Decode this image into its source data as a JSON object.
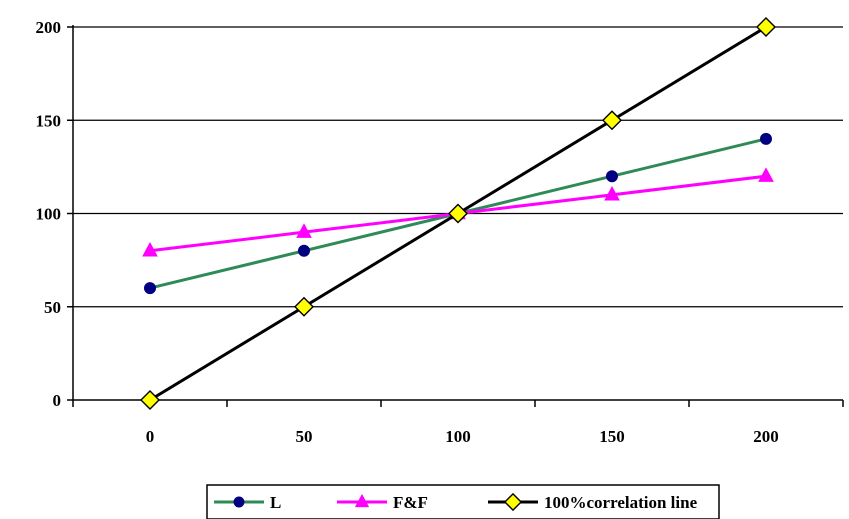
{
  "chart_data": {
    "type": "line",
    "title": "",
    "xlabel": "",
    "ylabel": "",
    "xlim": [
      -25,
      225
    ],
    "ylim": [
      0,
      200
    ],
    "x_ticks": [
      0,
      50,
      100,
      150,
      200
    ],
    "y_ticks": [
      0,
      50,
      100,
      150,
      200
    ],
    "grid": "horizontal",
    "legend_position": "bottom",
    "series": [
      {
        "name": "L",
        "color": "#2e8b57",
        "marker": "circle",
        "marker_color": "#000080",
        "x": [
          0,
          50,
          100,
          150,
          200
        ],
        "y": [
          60,
          80,
          100,
          120,
          140
        ]
      },
      {
        "name": "F&F",
        "color": "#ff00ff",
        "marker": "triangle",
        "marker_color": "#ff00ff",
        "x": [
          0,
          50,
          100,
          150,
          200
        ],
        "y": [
          80,
          90,
          100,
          110,
          120
        ]
      },
      {
        "name": "100%correlation line",
        "color": "#000000",
        "marker": "diamond",
        "marker_color": "#ffff00",
        "x": [
          0,
          50,
          100,
          150,
          200
        ],
        "y": [
          0,
          50,
          100,
          150,
          200
        ]
      }
    ]
  }
}
